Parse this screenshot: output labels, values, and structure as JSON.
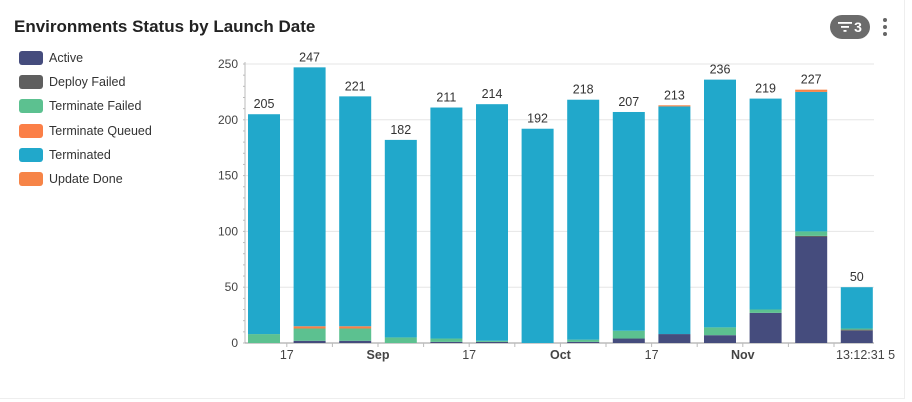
{
  "title": "Environments Status by Launch Date",
  "filter_badge": {
    "count": "3",
    "icon": "filter-icon"
  },
  "menu_icon": "more-vertical-icon",
  "legend": [
    {
      "label": "Active",
      "color": "#454c7d"
    },
    {
      "label": "Deploy Failed",
      "color": "#5f5f5f"
    },
    {
      "label": "Terminate Failed",
      "color": "#5cc190"
    },
    {
      "label": "Terminate Queued",
      "color": "#fb7f47"
    },
    {
      "label": "Terminated",
      "color": "#21a8cb"
    },
    {
      "label": "Update Done",
      "color": "#f68447"
    }
  ],
  "chart_data": {
    "type": "bar",
    "stacked": true,
    "title": "Environments Status by Launch Date",
    "xlabel": "",
    "ylabel": "",
    "ylim": [
      0,
      250
    ],
    "yticks": [
      0,
      50,
      100,
      150,
      200,
      250
    ],
    "x_tick_labels": [
      {
        "label": "17",
        "bold": false,
        "after_bar": 0
      },
      {
        "label": "Sep",
        "bold": true,
        "after_bar": 2
      },
      {
        "label": "17",
        "bold": false,
        "after_bar": 4
      },
      {
        "label": "Oct",
        "bold": true,
        "after_bar": 6
      },
      {
        "label": "17",
        "bold": false,
        "after_bar": 8
      },
      {
        "label": "Nov",
        "bold": true,
        "after_bar": 10
      },
      {
        "label": "13:12:31 5",
        "bold": false,
        "after_bar": 12
      }
    ],
    "totals": [
      205,
      247,
      221,
      182,
      211,
      214,
      192,
      218,
      207,
      213,
      236,
      219,
      227,
      50
    ],
    "series": [
      {
        "name": "Active",
        "color": "#454c7d",
        "values": [
          0,
          2,
          2,
          0,
          1,
          1,
          0,
          1,
          4,
          8,
          7,
          27,
          95,
          11
        ]
      },
      {
        "name": "Deploy Failed",
        "color": "#5f5f5f",
        "values": [
          0,
          0,
          0,
          0,
          0,
          0,
          0,
          0,
          0,
          0,
          0,
          0,
          1,
          1
        ]
      },
      {
        "name": "Terminate Failed",
        "color": "#5cc190",
        "values": [
          8,
          11,
          11,
          5,
          3,
          1,
          0,
          2,
          7,
          0,
          7,
          3,
          4,
          1
        ]
      },
      {
        "name": "Terminate Queued",
        "color": "#fb7f47",
        "values": [
          0,
          2,
          2,
          0,
          0,
          0,
          0,
          0,
          0,
          0,
          0,
          0,
          0,
          0
        ]
      },
      {
        "name": "Terminated",
        "color": "#21a8cb",
        "values": [
          197,
          232,
          206,
          177,
          207,
          212,
          192,
          215,
          196,
          204,
          222,
          189,
          125,
          37
        ]
      },
      {
        "name": "Update Done",
        "color": "#f68447",
        "values": [
          0,
          0,
          0,
          0,
          0,
          0,
          0,
          0,
          0,
          1,
          0,
          0,
          2,
          0
        ]
      }
    ],
    "data_labels_visible": [
      true,
      true,
      true,
      true,
      true,
      true,
      true,
      true,
      true,
      true,
      true,
      true,
      true,
      true
    ]
  }
}
